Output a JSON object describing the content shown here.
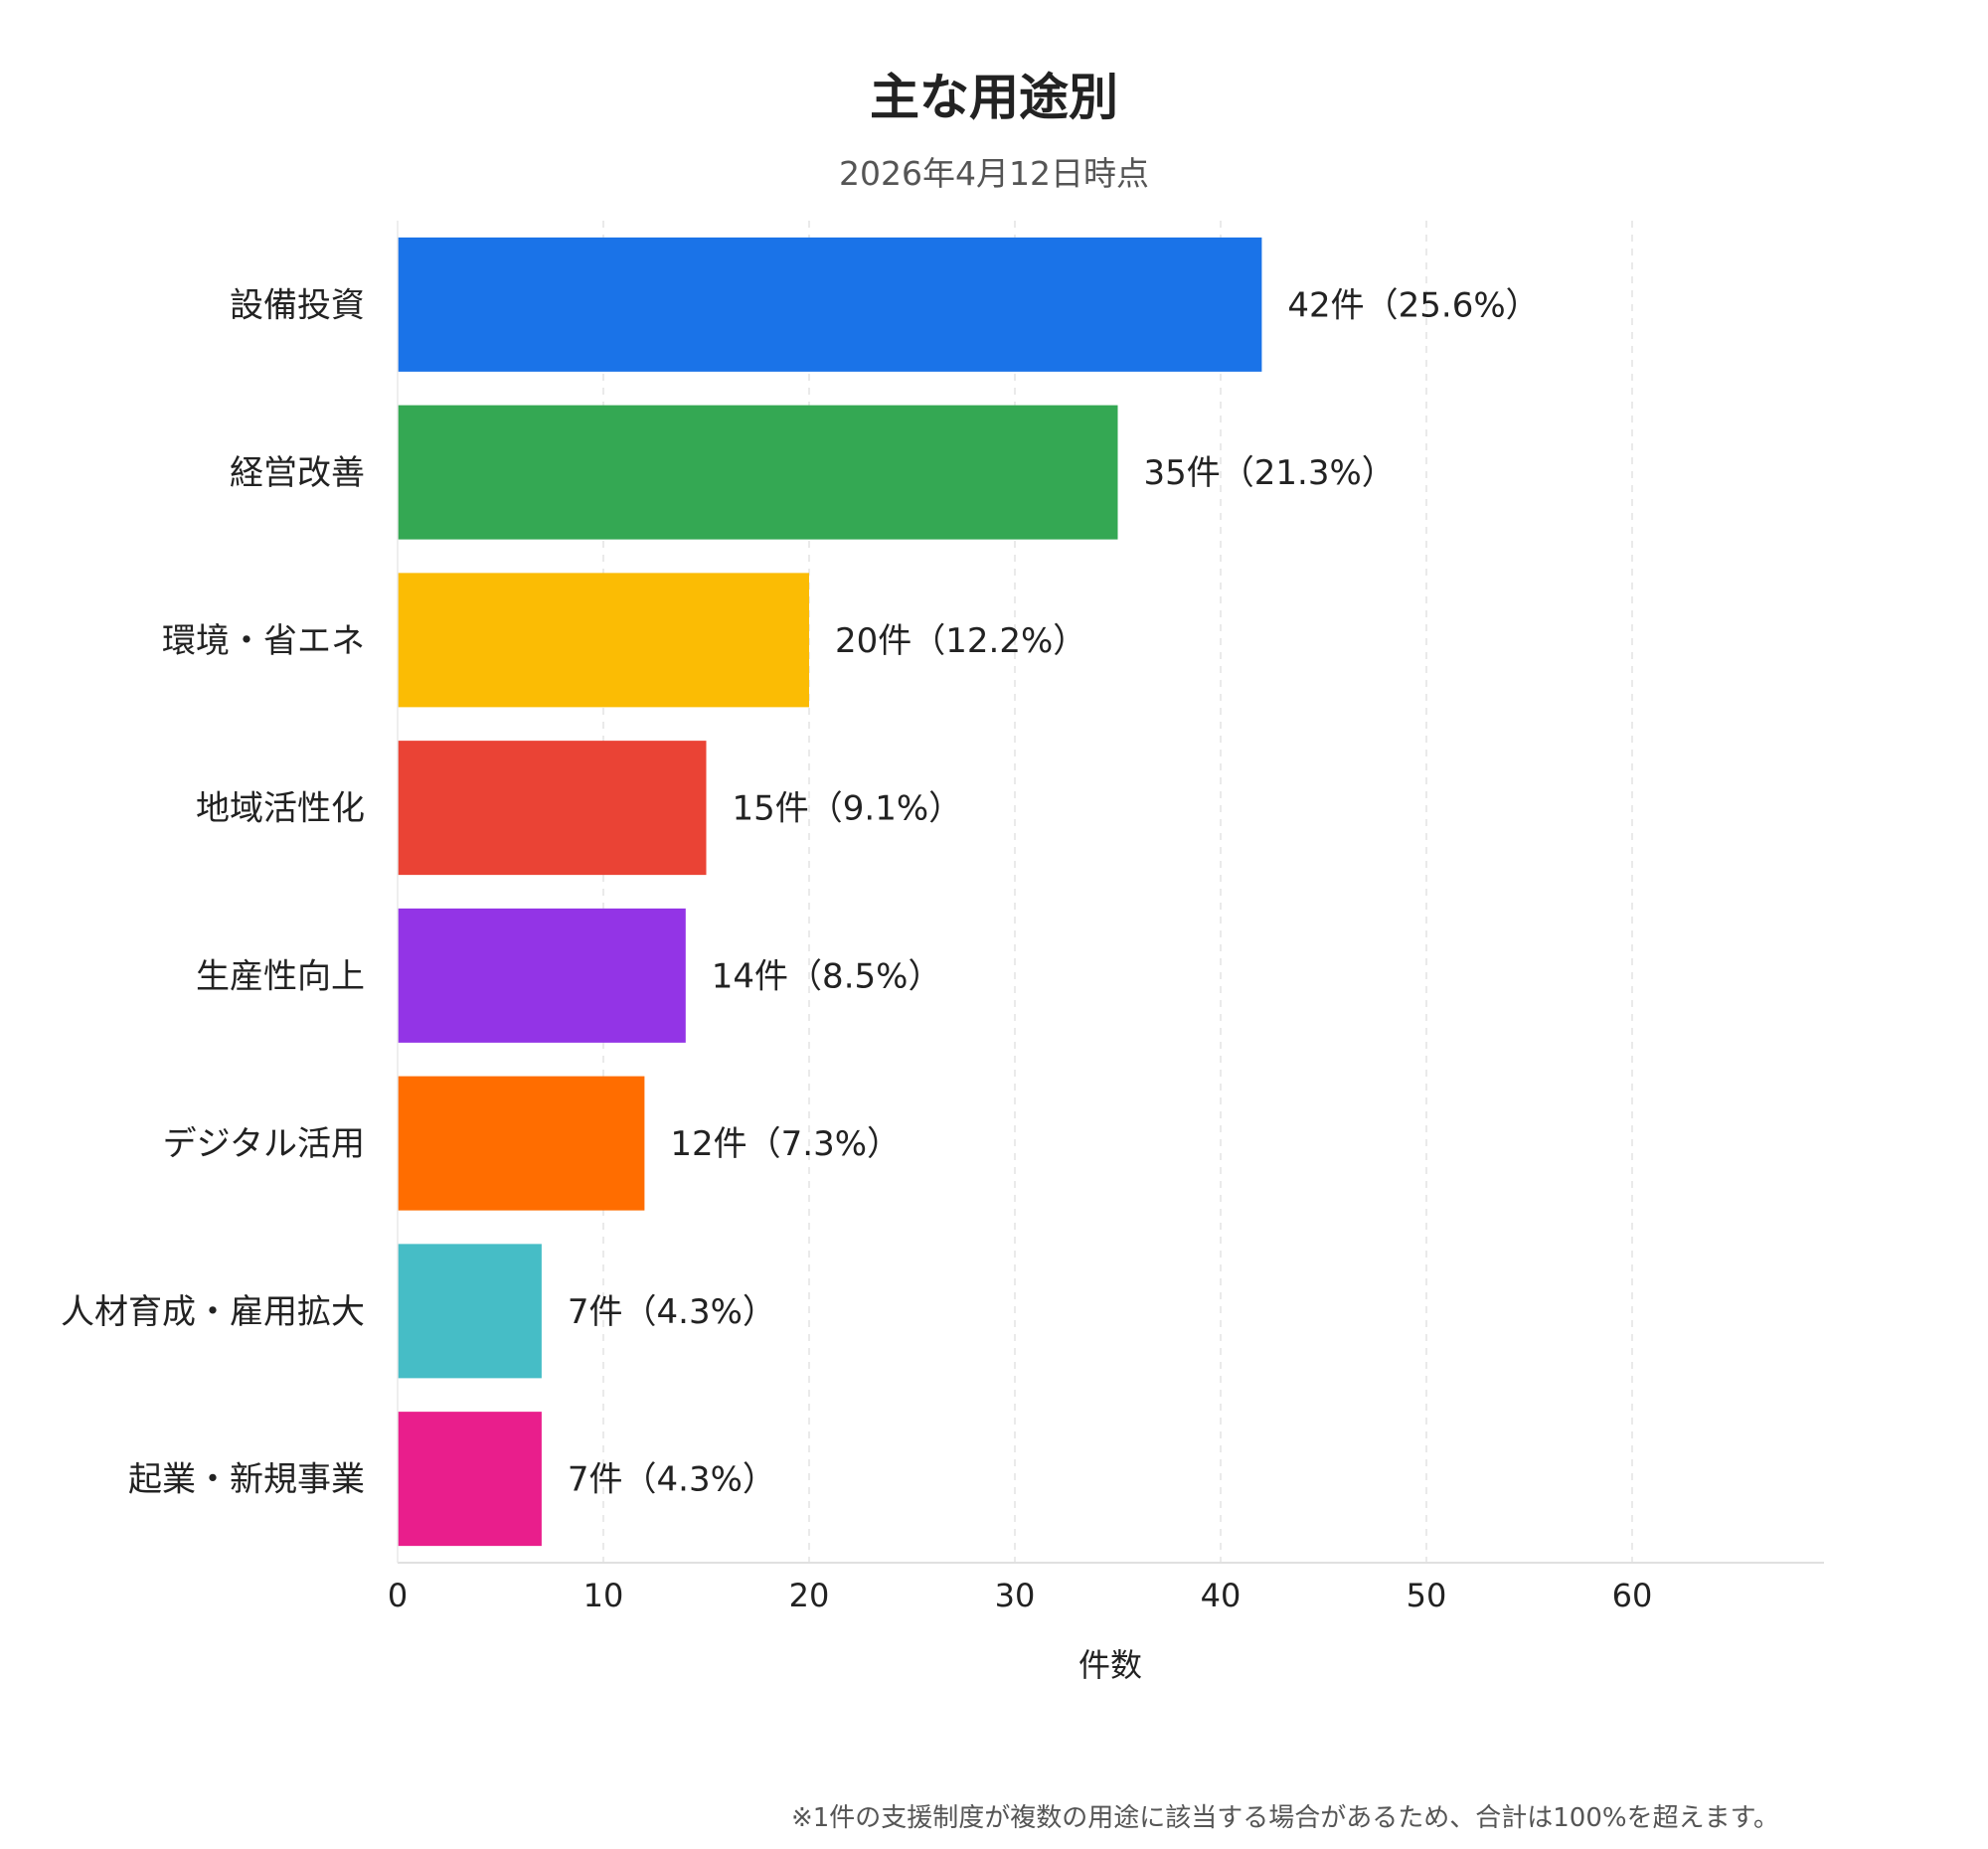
{
  "chart_data": {
    "type": "bar",
    "orientation": "horizontal",
    "title": "主な用途別",
    "subtitle": "2026年4月12日時点",
    "xlabel": "件数",
    "ylabel": "",
    "xlim": [
      0,
      69
    ],
    "xticks": [
      0,
      10,
      20,
      30,
      40,
      50,
      60
    ],
    "grid": "vertical-dashed",
    "categories": [
      "設備投資",
      "経営改善",
      "環境・省エネ",
      "地域活性化",
      "生産性向上",
      "デジタル活用",
      "人材育成・雇用拡大",
      "起業・新規事業"
    ],
    "values": [
      42,
      35,
      20,
      15,
      14,
      12,
      7,
      7
    ],
    "data_labels": [
      "42件（25.6%）",
      "35件（21.3%）",
      "20件（12.2%）",
      "15件（9.1%）",
      "14件（8.5%）",
      "12件（7.3%）",
      "7件（4.3%）",
      "7件（4.3%）"
    ],
    "colors": [
      "#1a73e8",
      "#34a853",
      "#fbbc04",
      "#ea4335",
      "#9334e6",
      "#ff6d00",
      "#46bdc6",
      "#e91e8c"
    ]
  },
  "footnote": "※1件の支援制度が複数の用途に該当する場合があるため、合計は100%を超えます。"
}
